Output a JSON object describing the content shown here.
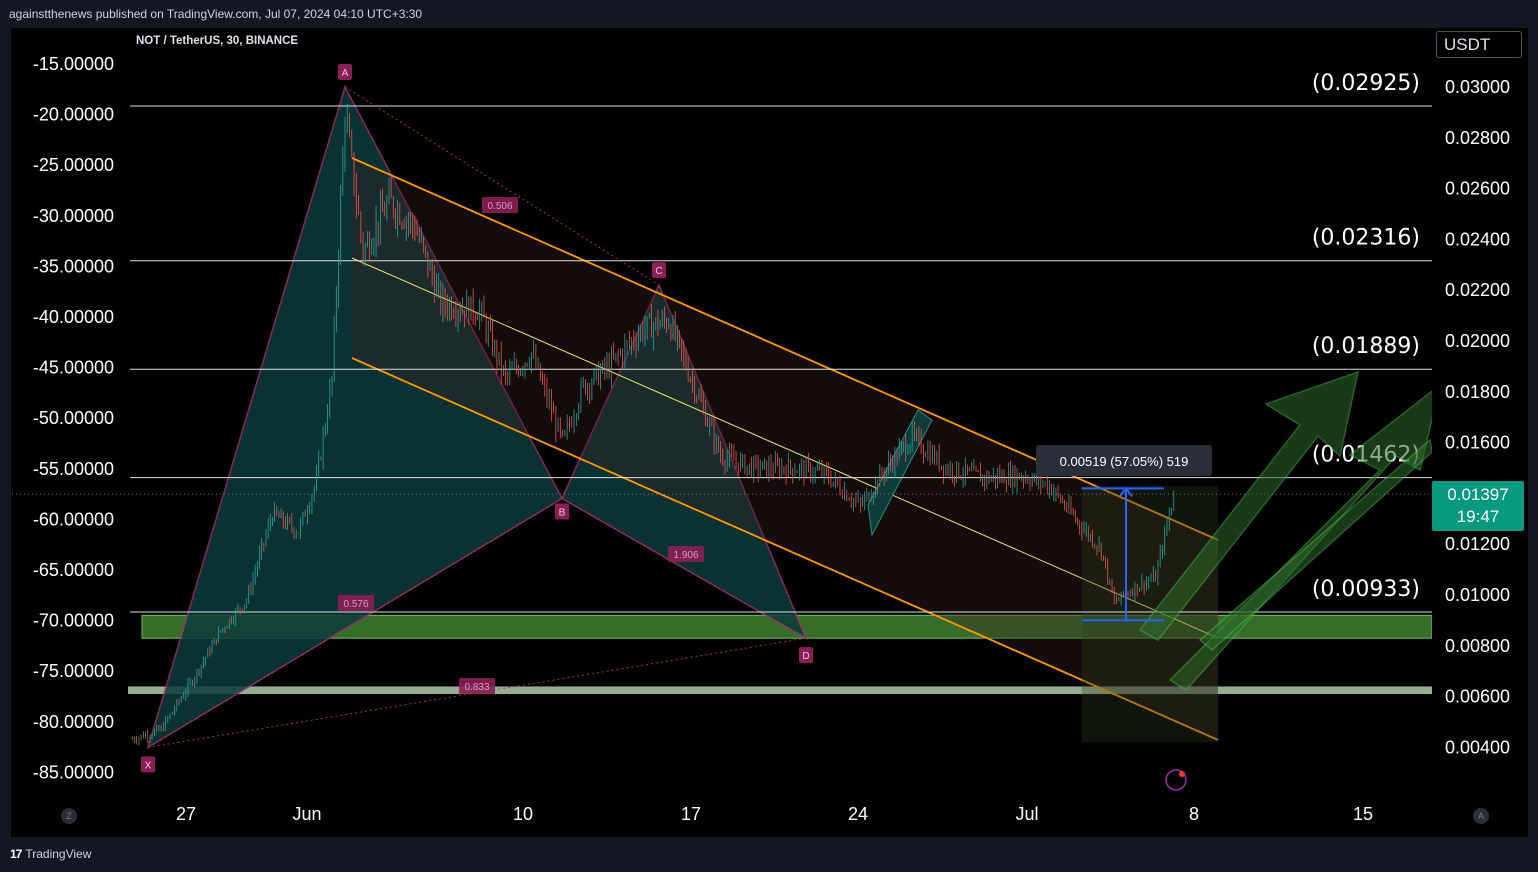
{
  "header": {
    "published_by": "againstthenews published on TradingView.com, Jul 07, 2024 04:10 UTC+3:30"
  },
  "symbol_info": "NOT / TetherUS, 30, BINANCE",
  "currency_button": "USDT",
  "last_price": {
    "price": "0.01397",
    "countdown": "19:47",
    "color": "#089981"
  },
  "brand": {
    "logo": "17",
    "name": "TradingView"
  },
  "scale_buttons": {
    "left": "Z",
    "right": "A"
  },
  "colors": {
    "background": "#000000",
    "chrome": "#131722",
    "pattern_fill": "#0e3b3b",
    "pattern_stroke": "#a0306a",
    "channel_orange": "#ff9800",
    "channel_yellow": "#e8e86b",
    "support_zone": "#3c7a2e",
    "support_zone_light": "#a7bfa2",
    "arrow_green": "#2e7d32",
    "measure_blue": "#2962ff",
    "candle_up": "#26a69a",
    "candle_down": "#ef5350"
  },
  "chart_data": {
    "type": "candlestick",
    "ticker": "NOT / TetherUS",
    "interval": "30",
    "exchange": "BINANCE",
    "x_ticks": [
      "27",
      "Jun",
      "10",
      "17",
      "24",
      "Jul",
      "8",
      "15"
    ],
    "right_axis": {
      "unit": "USDT",
      "ticks": [
        "0.03000",
        "0.02800",
        "0.02600",
        "0.02400",
        "0.02200",
        "0.02000",
        "0.01800",
        "0.01600",
        "0.01200",
        "0.01000",
        "0.00800",
        "0.00600",
        "0.00400"
      ],
      "range": [
        0.003,
        0.0312
      ]
    },
    "left_axis": {
      "ticks": [
        "-15.00000",
        "-20.00000",
        "-25.00000",
        "-30.00000",
        "-35.00000",
        "-40.00000",
        "-45.00000",
        "-50.00000",
        "-55.00000",
        "-60.00000",
        "-65.00000",
        "-70.00000",
        "-75.00000",
        "-80.00000",
        "-85.00000"
      ]
    },
    "price_path": [
      [
        0,
        0.0043
      ],
      [
        1.2,
        0.0047
      ],
      [
        2.5,
        0.0068
      ],
      [
        3.5,
        0.0086
      ],
      [
        4.5,
        0.0098
      ],
      [
        5.5,
        0.0132
      ],
      [
        6.5,
        0.0125
      ],
      [
        7.2,
        0.0145
      ],
      [
        7.8,
        0.0185
      ],
      [
        8.3,
        0.029
      ],
      [
        9,
        0.0235
      ],
      [
        10,
        0.0255
      ],
      [
        11,
        0.0245
      ],
      [
        12,
        0.0215
      ],
      [
        13.5,
        0.0212
      ],
      [
        14.5,
        0.0185
      ],
      [
        15.5,
        0.0195
      ],
      [
        16.7,
        0.016
      ],
      [
        17.5,
        0.0182
      ],
      [
        18.5,
        0.019
      ],
      [
        19.8,
        0.0205
      ],
      [
        20.8,
        0.0208
      ],
      [
        21.8,
        0.0182
      ],
      [
        22.8,
        0.0155
      ],
      [
        24,
        0.015
      ],
      [
        25.5,
        0.015
      ],
      [
        26.8,
        0.0148
      ],
      [
        28.2,
        0.0135
      ],
      [
        29.2,
        0.015
      ],
      [
        30.2,
        0.0162
      ],
      [
        31.5,
        0.015
      ],
      [
        33,
        0.0146
      ],
      [
        34.5,
        0.0147
      ],
      [
        35.5,
        0.0143
      ],
      [
        36.5,
        0.013
      ],
      [
        37.5,
        0.0118
      ],
      [
        38,
        0.0097
      ],
      [
        38.8,
        0.0103
      ],
      [
        39.6,
        0.0107
      ],
      [
        40.3,
        0.014
      ]
    ],
    "horizontal_levels": [
      {
        "label": "(0.02925)",
        "price": 0.02925
      },
      {
        "label": "(0.02316)",
        "price": 0.02316
      },
      {
        "label": "(0.01889)",
        "price": 0.01889
      },
      {
        "label": "(0.01462)",
        "price": 0.01462
      },
      {
        "label": "(0.00933)",
        "price": 0.00933
      }
    ],
    "harmonic_pattern": {
      "points": [
        {
          "label": "X",
          "price": 0.004
        },
        {
          "label": "A",
          "price": 0.03
        },
        {
          "label": "B",
          "price": 0.0138
        },
        {
          "label": "C",
          "price": 0.0222
        },
        {
          "label": "D",
          "price": 0.0083
        }
      ],
      "ratios": [
        "0.506",
        "1.906",
        "0.576",
        "0.833"
      ]
    },
    "measure": {
      "text": "0.00519 (57.05%) 519",
      "from": 0.009,
      "to": 0.0142
    },
    "zones": [
      {
        "name": "support",
        "from": 0.0083,
        "to": 0.0092
      },
      {
        "name": "lower support",
        "from": 0.0061,
        "to": 0.0064
      }
    ]
  }
}
